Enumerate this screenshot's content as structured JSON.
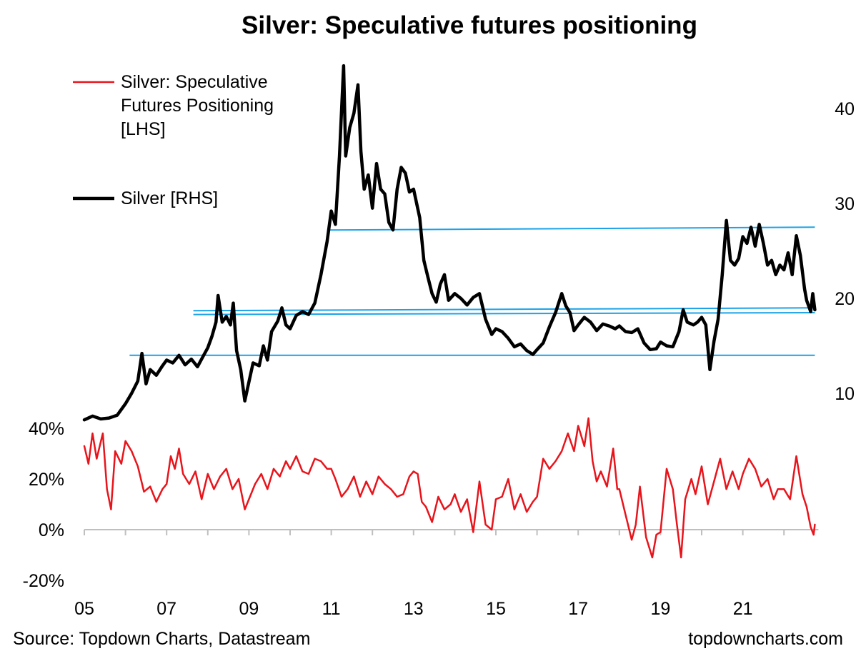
{
  "chart_data": {
    "type": "line",
    "title": "Silver: Speculative futures positioning",
    "source": "Source: Topdown Charts, Datastream",
    "watermark": "topdowncharts.com",
    "x_tick_labels": [
      "05",
      "07",
      "09",
      "11",
      "13",
      "15",
      "17",
      "19",
      "21"
    ],
    "x_range": [
      2005.0,
      2022.75
    ],
    "left_axis": {
      "ticks": [
        "40%",
        "20%",
        "0%",
        "-20%"
      ],
      "tick_values": [
        40,
        20,
        0,
        -20
      ],
      "range": [
        -20,
        40
      ]
    },
    "right_axis": {
      "ticks": [
        "40",
        "30",
        "20",
        "10"
      ],
      "tick_values": [
        40,
        30,
        20,
        10
      ],
      "range": [
        10,
        40
      ]
    },
    "legend": [
      {
        "label": "Silver: Speculative Futures Positioning [LHS]",
        "lines": [
          "Silver: Speculative",
          "Futures Positioning",
          "[LHS]"
        ],
        "color": "#e8141b"
      },
      {
        "label": "Silver [RHS]",
        "lines": [
          "Silver [RHS]"
        ],
        "color": "#000000"
      }
    ],
    "series": [
      {
        "name": "Silver: Speculative Futures Positioning [LHS]",
        "axis": "left",
        "color": "#e8141b",
        "points": [
          [
            2005.0,
            33
          ],
          [
            2005.1,
            26
          ],
          [
            2005.2,
            38
          ],
          [
            2005.3,
            28
          ],
          [
            2005.45,
            38
          ],
          [
            2005.55,
            16
          ],
          [
            2005.65,
            8
          ],
          [
            2005.75,
            31
          ],
          [
            2005.9,
            26
          ],
          [
            2006.0,
            35
          ],
          [
            2006.15,
            31
          ],
          [
            2006.3,
            25
          ],
          [
            2006.45,
            15
          ],
          [
            2006.6,
            17
          ],
          [
            2006.75,
            11
          ],
          [
            2006.9,
            16
          ],
          [
            2007.0,
            18
          ],
          [
            2007.1,
            29
          ],
          [
            2007.2,
            24
          ],
          [
            2007.3,
            32
          ],
          [
            2007.4,
            22
          ],
          [
            2007.55,
            18
          ],
          [
            2007.7,
            23
          ],
          [
            2007.85,
            12
          ],
          [
            2008.0,
            22
          ],
          [
            2008.15,
            16
          ],
          [
            2008.3,
            21
          ],
          [
            2008.45,
            24
          ],
          [
            2008.6,
            16
          ],
          [
            2008.75,
            20
          ],
          [
            2008.9,
            8
          ],
          [
            2009.0,
            12
          ],
          [
            2009.15,
            18
          ],
          [
            2009.3,
            22
          ],
          [
            2009.45,
            16
          ],
          [
            2009.6,
            24
          ],
          [
            2009.75,
            21
          ],
          [
            2009.9,
            27
          ],
          [
            2010.0,
            24
          ],
          [
            2010.15,
            29
          ],
          [
            2010.3,
            23
          ],
          [
            2010.45,
            22
          ],
          [
            2010.6,
            28
          ],
          [
            2010.75,
            27
          ],
          [
            2010.9,
            24
          ],
          [
            2011.0,
            24
          ],
          [
            2011.1,
            20
          ],
          [
            2011.25,
            13
          ],
          [
            2011.4,
            16
          ],
          [
            2011.55,
            21
          ],
          [
            2011.7,
            13
          ],
          [
            2011.85,
            19
          ],
          [
            2012.0,
            14
          ],
          [
            2012.15,
            21
          ],
          [
            2012.3,
            18
          ],
          [
            2012.45,
            16
          ],
          [
            2012.6,
            13
          ],
          [
            2012.75,
            14
          ],
          [
            2012.9,
            21
          ],
          [
            2013.0,
            23
          ],
          [
            2013.1,
            22
          ],
          [
            2013.2,
            11
          ],
          [
            2013.3,
            9
          ],
          [
            2013.45,
            3
          ],
          [
            2013.6,
            13
          ],
          [
            2013.75,
            8
          ],
          [
            2013.9,
            10
          ],
          [
            2014.0,
            14
          ],
          [
            2014.15,
            7
          ],
          [
            2014.3,
            12
          ],
          [
            2014.45,
            -1
          ],
          [
            2014.6,
            19
          ],
          [
            2014.75,
            2
          ],
          [
            2014.9,
            0
          ],
          [
            2015.0,
            12
          ],
          [
            2015.15,
            13
          ],
          [
            2015.3,
            20
          ],
          [
            2015.45,
            8
          ],
          [
            2015.6,
            14
          ],
          [
            2015.75,
            7
          ],
          [
            2015.9,
            11
          ],
          [
            2016.0,
            13
          ],
          [
            2016.15,
            28
          ],
          [
            2016.3,
            24
          ],
          [
            2016.45,
            27
          ],
          [
            2016.6,
            31
          ],
          [
            2016.75,
            38
          ],
          [
            2016.9,
            31
          ],
          [
            2017.0,
            41
          ],
          [
            2017.15,
            33
          ],
          [
            2017.25,
            44
          ],
          [
            2017.35,
            27
          ],
          [
            2017.45,
            19
          ],
          [
            2017.55,
            23
          ],
          [
            2017.7,
            17
          ],
          [
            2017.85,
            32
          ],
          [
            2017.95,
            16
          ],
          [
            2018.0,
            16
          ],
          [
            2018.15,
            6
          ],
          [
            2018.3,
            -4
          ],
          [
            2018.4,
            2
          ],
          [
            2018.5,
            17
          ],
          [
            2018.65,
            -3
          ],
          [
            2018.8,
            -11
          ],
          [
            2018.9,
            -2
          ],
          [
            2019.0,
            -1
          ],
          [
            2019.15,
            24
          ],
          [
            2019.3,
            16
          ],
          [
            2019.4,
            2
          ],
          [
            2019.5,
            -11
          ],
          [
            2019.6,
            12
          ],
          [
            2019.75,
            20
          ],
          [
            2019.85,
            14
          ],
          [
            2020.0,
            25
          ],
          [
            2020.15,
            10
          ],
          [
            2020.3,
            19
          ],
          [
            2020.45,
            28
          ],
          [
            2020.6,
            16
          ],
          [
            2020.75,
            23
          ],
          [
            2020.9,
            16
          ],
          [
            2021.0,
            22
          ],
          [
            2021.15,
            28
          ],
          [
            2021.3,
            24
          ],
          [
            2021.45,
            17
          ],
          [
            2021.6,
            20
          ],
          [
            2021.75,
            12
          ],
          [
            2021.85,
            16
          ],
          [
            2022.0,
            16
          ],
          [
            2022.15,
            12
          ],
          [
            2022.3,
            29
          ],
          [
            2022.45,
            14
          ],
          [
            2022.55,
            9
          ],
          [
            2022.65,
            1
          ],
          [
            2022.72,
            -2
          ],
          [
            2022.75,
            2
          ]
        ]
      },
      {
        "name": "Silver [RHS]",
        "axis": "right",
        "color": "#000000",
        "points": [
          [
            2005.0,
            7.2
          ],
          [
            2005.2,
            7.6
          ],
          [
            2005.4,
            7.3
          ],
          [
            2005.6,
            7.4
          ],
          [
            2005.8,
            7.7
          ],
          [
            2006.0,
            8.9
          ],
          [
            2006.15,
            10
          ],
          [
            2006.3,
            11.3
          ],
          [
            2006.4,
            14.2
          ],
          [
            2006.5,
            11
          ],
          [
            2006.6,
            12.5
          ],
          [
            2006.75,
            11.9
          ],
          [
            2006.9,
            12.9
          ],
          [
            2007.0,
            13.5
          ],
          [
            2007.15,
            13.2
          ],
          [
            2007.3,
            14
          ],
          [
            2007.45,
            13
          ],
          [
            2007.6,
            13.6
          ],
          [
            2007.75,
            12.8
          ],
          [
            2007.9,
            14
          ],
          [
            2008.0,
            14.8
          ],
          [
            2008.1,
            16
          ],
          [
            2008.2,
            17.5
          ],
          [
            2008.25,
            20.3
          ],
          [
            2008.35,
            17.5
          ],
          [
            2008.45,
            18.1
          ],
          [
            2008.55,
            17.2
          ],
          [
            2008.62,
            19.5
          ],
          [
            2008.7,
            14.5
          ],
          [
            2008.8,
            12.5
          ],
          [
            2008.9,
            9.2
          ],
          [
            2009.0,
            11.2
          ],
          [
            2009.1,
            13.2
          ],
          [
            2009.25,
            12.9
          ],
          [
            2009.35,
            15
          ],
          [
            2009.45,
            13.5
          ],
          [
            2009.55,
            16.5
          ],
          [
            2009.7,
            17.6
          ],
          [
            2009.8,
            19
          ],
          [
            2009.9,
            17.2
          ],
          [
            2010.0,
            16.8
          ],
          [
            2010.15,
            18.2
          ],
          [
            2010.3,
            18.6
          ],
          [
            2010.45,
            18.3
          ],
          [
            2010.6,
            19.5
          ],
          [
            2010.75,
            22.5
          ],
          [
            2010.9,
            26
          ],
          [
            2011.0,
            29.2
          ],
          [
            2011.1,
            27.8
          ],
          [
            2011.2,
            35
          ],
          [
            2011.3,
            44.5
          ],
          [
            2011.35,
            35
          ],
          [
            2011.45,
            38
          ],
          [
            2011.55,
            39.5
          ],
          [
            2011.65,
            42.5
          ],
          [
            2011.72,
            35.5
          ],
          [
            2011.8,
            31.5
          ],
          [
            2011.9,
            33
          ],
          [
            2012.0,
            29.5
          ],
          [
            2012.1,
            34.2
          ],
          [
            2012.2,
            31.5
          ],
          [
            2012.3,
            31
          ],
          [
            2012.4,
            28
          ],
          [
            2012.5,
            27.2
          ],
          [
            2012.6,
            31.5
          ],
          [
            2012.7,
            33.8
          ],
          [
            2012.8,
            33.2
          ],
          [
            2012.9,
            31.2
          ],
          [
            2013.0,
            31.5
          ],
          [
            2013.15,
            28.5
          ],
          [
            2013.25,
            24
          ],
          [
            2013.35,
            22.2
          ],
          [
            2013.45,
            20.5
          ],
          [
            2013.55,
            19.6
          ],
          [
            2013.65,
            21.5
          ],
          [
            2013.75,
            22.5
          ],
          [
            2013.85,
            19.8
          ],
          [
            2014.0,
            20.5
          ],
          [
            2014.15,
            20
          ],
          [
            2014.3,
            19.3
          ],
          [
            2014.45,
            20.1
          ],
          [
            2014.6,
            20.5
          ],
          [
            2014.75,
            17.8
          ],
          [
            2014.9,
            16.2
          ],
          [
            2015.0,
            16.8
          ],
          [
            2015.15,
            16.5
          ],
          [
            2015.3,
            15.8
          ],
          [
            2015.45,
            14.9
          ],
          [
            2015.6,
            15.2
          ],
          [
            2015.75,
            14.5
          ],
          [
            2015.9,
            14.1
          ],
          [
            2016.0,
            14.6
          ],
          [
            2016.15,
            15.3
          ],
          [
            2016.3,
            17
          ],
          [
            2016.45,
            18.5
          ],
          [
            2016.6,
            20.5
          ],
          [
            2016.7,
            19.2
          ],
          [
            2016.8,
            18.5
          ],
          [
            2016.9,
            16.6
          ],
          [
            2017.0,
            17.2
          ],
          [
            2017.15,
            18
          ],
          [
            2017.3,
            17.5
          ],
          [
            2017.45,
            16.6
          ],
          [
            2017.6,
            17.3
          ],
          [
            2017.75,
            17.1
          ],
          [
            2017.9,
            16.8
          ],
          [
            2018.0,
            17.1
          ],
          [
            2018.15,
            16.5
          ],
          [
            2018.3,
            16.4
          ],
          [
            2018.45,
            16.8
          ],
          [
            2018.6,
            15.3
          ],
          [
            2018.75,
            14.6
          ],
          [
            2018.9,
            14.7
          ],
          [
            2019.0,
            15.4
          ],
          [
            2019.15,
            15
          ],
          [
            2019.3,
            14.9
          ],
          [
            2019.45,
            16.5
          ],
          [
            2019.55,
            18.8
          ],
          [
            2019.65,
            17.5
          ],
          [
            2019.8,
            17.2
          ],
          [
            2019.9,
            17.5
          ],
          [
            2020.0,
            18
          ],
          [
            2020.1,
            17.2
          ],
          [
            2020.2,
            12.5
          ],
          [
            2020.3,
            15.5
          ],
          [
            2020.4,
            17.8
          ],
          [
            2020.5,
            22.5
          ],
          [
            2020.6,
            28.2
          ],
          [
            2020.7,
            24
          ],
          [
            2020.8,
            23.5
          ],
          [
            2020.9,
            24.2
          ],
          [
            2021.0,
            26.5
          ],
          [
            2021.1,
            25.8
          ],
          [
            2021.2,
            27.5
          ],
          [
            2021.3,
            25.5
          ],
          [
            2021.4,
            27.8
          ],
          [
            2021.5,
            25.8
          ],
          [
            2021.6,
            23.5
          ],
          [
            2021.7,
            24
          ],
          [
            2021.8,
            22.5
          ],
          [
            2021.9,
            23.5
          ],
          [
            2022.0,
            23
          ],
          [
            2022.1,
            24.8
          ],
          [
            2022.2,
            22.5
          ],
          [
            2022.3,
            26.6
          ],
          [
            2022.4,
            24.5
          ],
          [
            2022.5,
            21
          ],
          [
            2022.55,
            19.8
          ],
          [
            2022.65,
            18.6
          ],
          [
            2022.7,
            20.5
          ],
          [
            2022.75,
            18.8
          ]
        ]
      }
    ],
    "reference_lines": [
      {
        "axis": "right",
        "from_x": 2010.9,
        "to_x": 2022.75,
        "y_start": 27.2,
        "y_end": 27.5,
        "color": "#1aa3e8"
      },
      {
        "axis": "right",
        "from_x": 2007.65,
        "to_x": 2022.75,
        "y_start": 18.7,
        "y_end": 19.0,
        "color": "#1aa3e8"
      },
      {
        "axis": "right",
        "from_x": 2007.65,
        "to_x": 2022.75,
        "y_start": 18.3,
        "y_end": 18.5,
        "color": "#1aa3e8"
      },
      {
        "axis": "right",
        "from_x": 2006.1,
        "to_x": 2022.75,
        "y_start": 14.0,
        "y_end": 14.0,
        "color": "#1aa3e8"
      }
    ]
  }
}
